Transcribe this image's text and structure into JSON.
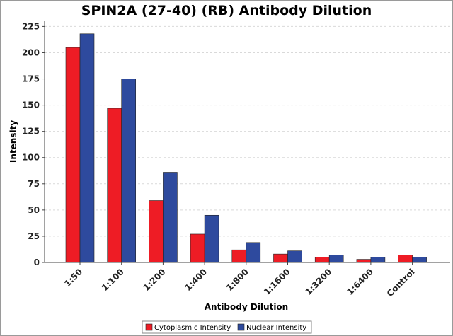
{
  "chart_data": {
    "type": "bar",
    "title": "SPIN2A (27-40) (RB) Antibody Dilution",
    "xlabel": "Antibody Dilution",
    "ylabel": "Intensity",
    "categories": [
      "1:50",
      "1:100",
      "1:200",
      "1:400",
      "1:800",
      "1:1600",
      "1:3200",
      "1:6400",
      "Control"
    ],
    "series": [
      {
        "name": "Cytoplasmic Intensity",
        "color": "#ee1c25",
        "values": [
          205,
          147,
          59,
          27,
          12,
          8,
          5,
          3,
          7
        ]
      },
      {
        "name": "Nuclear Intensity",
        "color": "#2e4a9e",
        "values": [
          218,
          175,
          86,
          45,
          19,
          11,
          7,
          5,
          5
        ]
      }
    ],
    "ylim": [
      0,
      230
    ],
    "yticks": [
      0,
      25,
      50,
      75,
      100,
      125,
      150,
      175,
      200,
      225
    ],
    "grid": true,
    "legend_position": "bottom-center"
  }
}
